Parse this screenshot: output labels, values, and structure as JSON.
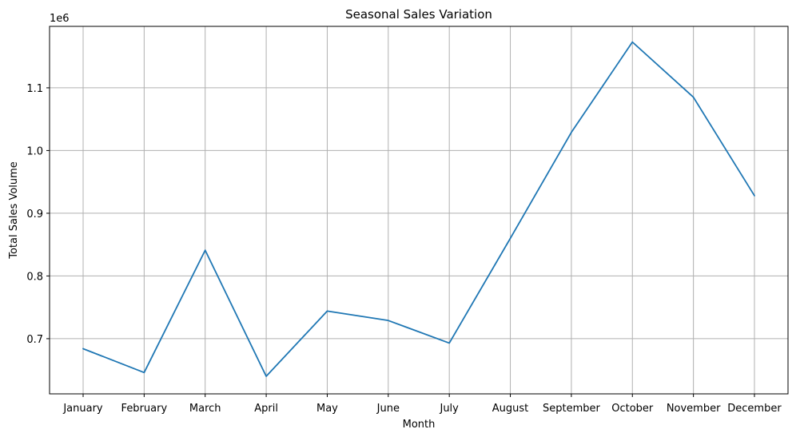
{
  "chart_data": {
    "type": "line",
    "title": "Seasonal Sales Variation",
    "xlabel": "Month",
    "ylabel": "Total Sales Volume",
    "y_offset_label": "1e6",
    "categories": [
      "January",
      "February",
      "March",
      "April",
      "May",
      "June",
      "July",
      "August",
      "September",
      "October",
      "November",
      "December"
    ],
    "series": [
      {
        "values": [
          684000,
          646000,
          841000,
          640000,
          744000,
          729000,
          693000,
          860000,
          1029000,
          1173000,
          1085000,
          928000
        ],
        "color": "#1f77b4"
      }
    ],
    "ylim": [
      612000,
      1198000
    ],
    "yticks": [
      700000,
      800000,
      900000,
      1000000,
      1100000
    ],
    "ytick_labels": [
      "0.7",
      "0.8",
      "0.9",
      "1.0",
      "1.1"
    ],
    "grid": true
  }
}
